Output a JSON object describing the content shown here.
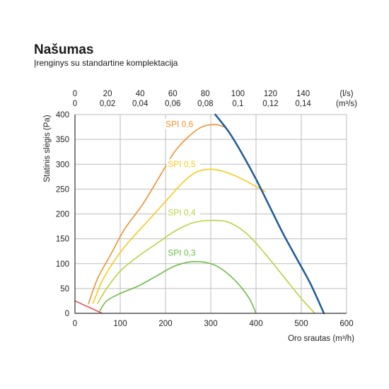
{
  "header": {
    "title": "Našumas",
    "subtitle": "Įrenginys su standartine komplektacija"
  },
  "chart_data": {
    "type": "line",
    "xlabel": "Oro srautas (m³/h)",
    "ylabel": "Statinis slėgis (Pa)",
    "xlim": [
      0,
      600
    ],
    "ylim": [
      0,
      400
    ],
    "x_ticks": [
      "0",
      "100",
      "200",
      "300",
      "400",
      "500",
      "600"
    ],
    "y_ticks": [
      "0",
      "50",
      "100",
      "150",
      "200",
      "250",
      "300",
      "350",
      "400"
    ],
    "top_axis_ls": {
      "unit": "(l/s)",
      "ticks": [
        {
          "value": 0,
          "label": "0"
        },
        {
          "value": 20,
          "label": "20"
        },
        {
          "value": 40,
          "label": "40"
        },
        {
          "value": 60,
          "label": "60"
        },
        {
          "value": 80,
          "label": "80"
        },
        {
          "value": 100,
          "label": "100"
        },
        {
          "value": 120,
          "label": "120"
        },
        {
          "value": 140,
          "label": "140"
        }
      ]
    },
    "top_axis_m3s": {
      "unit": "(m³/s)",
      "ticks": [
        {
          "value": 0,
          "label": "0"
        },
        {
          "value": 0.02,
          "label": "0,02"
        },
        {
          "value": 0.04,
          "label": "0,04"
        },
        {
          "value": 0.06,
          "label": "0,06"
        },
        {
          "value": 0.08,
          "label": "0,08"
        },
        {
          "value": 0.1,
          "label": "0,1"
        },
        {
          "value": 0.12,
          "label": "0,12"
        },
        {
          "value": 0.14,
          "label": "0,14"
        }
      ]
    },
    "grid": true,
    "series": [
      {
        "name": "SPI 0,6",
        "color": "#f0912e",
        "label_at": [
          200,
          375
        ],
        "points": [
          [
            30,
            20
          ],
          [
            50,
            70
          ],
          [
            80,
            120
          ],
          [
            110,
            170
          ],
          [
            150,
            220
          ],
          [
            190,
            280
          ],
          [
            220,
            325
          ],
          [
            250,
            355
          ],
          [
            280,
            375
          ],
          [
            310,
            380
          ],
          [
            330,
            375
          ]
        ]
      },
      {
        "name": "SPI 0,5",
        "color": "#f8c91a",
        "label_at": [
          205,
          295
        ],
        "points": [
          [
            40,
            20
          ],
          [
            60,
            65
          ],
          [
            90,
            110
          ],
          [
            120,
            145
          ],
          [
            160,
            185
          ],
          [
            200,
            225
          ],
          [
            240,
            265
          ],
          [
            270,
            285
          ],
          [
            300,
            290
          ],
          [
            330,
            285
          ],
          [
            370,
            270
          ],
          [
            420,
            245
          ]
        ]
      },
      {
        "name": "SPI 0,4",
        "color": "#b6d340",
        "label_at": [
          205,
          197
        ],
        "points": [
          [
            50,
            20
          ],
          [
            70,
            50
          ],
          [
            100,
            85
          ],
          [
            140,
            115
          ],
          [
            180,
            140
          ],
          [
            220,
            165
          ],
          [
            260,
            182
          ],
          [
            300,
            187
          ],
          [
            340,
            183
          ],
          [
            380,
            160
          ],
          [
            420,
            120
          ],
          [
            460,
            75
          ],
          [
            500,
            30
          ],
          [
            530,
            0
          ]
        ]
      },
      {
        "name": "SPI 0,3",
        "color": "#6cbc45",
        "label_at": [
          205,
          116
        ],
        "points": [
          [
            55,
            5
          ],
          [
            70,
            25
          ],
          [
            100,
            40
          ],
          [
            140,
            55
          ],
          [
            180,
            75
          ],
          [
            220,
            95
          ],
          [
            260,
            104
          ],
          [
            300,
            100
          ],
          [
            330,
            85
          ],
          [
            360,
            60
          ],
          [
            385,
            30
          ],
          [
            400,
            0
          ]
        ]
      },
      {
        "name": "",
        "color": "#1c5b9c",
        "points": [
          [
            310,
            400
          ],
          [
            340,
            365
          ],
          [
            370,
            320
          ],
          [
            400,
            270
          ],
          [
            430,
            215
          ],
          [
            460,
            160
          ],
          [
            490,
            110
          ],
          [
            520,
            60
          ],
          [
            550,
            0
          ]
        ]
      },
      {
        "name": "",
        "color": "#e94e56",
        "points": [
          [
            0,
            25
          ],
          [
            60,
            0
          ]
        ]
      }
    ]
  }
}
